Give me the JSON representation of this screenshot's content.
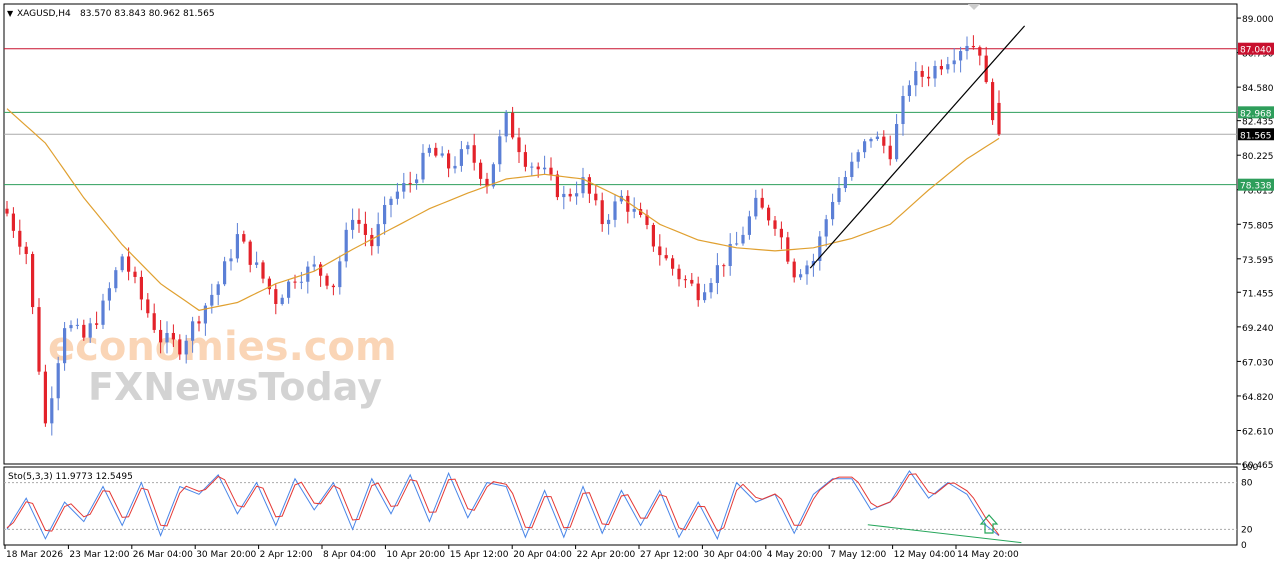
{
  "header": {
    "symbol": "XAGUSD,H4",
    "ohlc": "83.570 83.843 80.962 81.565",
    "dropdown_glyph": "▼"
  },
  "watermark": {
    "line1": "economies.com",
    "line2": "FXNewsToday"
  },
  "colors": {
    "bull": "#5B7FD6",
    "bear": "#E3222A",
    "ma": "#E0A030",
    "resistance": "#C8102E",
    "support": "#2E9E5B",
    "current": "#000000",
    "stoch_main": "#4A86E8",
    "stoch_signal": "#E53935",
    "divergence": "#26A65B",
    "arrow": "#26A65B"
  },
  "chart_data": [
    {
      "type": "candlestick",
      "ylim": [
        60.465,
        89.9
      ],
      "y_ticks": [
        "89.000",
        "86.790",
        "84.580",
        "82.435",
        "80.225",
        "78.015",
        "75.805",
        "73.595",
        "71.455",
        "69.240",
        "67.030",
        "64.820",
        "62.610",
        "60.465"
      ],
      "x_ticks": [
        "18 Mar 2026",
        "23 Mar 12:00",
        "26 Mar 04:00",
        "30 Mar 20:00",
        "2 Apr 12:00",
        "8 Apr 04:00",
        "10 Apr 20:00",
        "15 Apr 12:00",
        "20 Apr 04:00",
        "22 Apr 20:00",
        "27 Apr 12:00",
        "30 Apr 04:00",
        "4 May 20:00",
        "7 May 12:00",
        "12 May 04:00",
        "14 May 20:00"
      ],
      "close_path": [
        [
          0,
          76.5
        ],
        [
          3,
          74.0
        ],
        [
          6,
          63.0
        ],
        [
          9,
          69.5
        ],
        [
          12,
          68.5
        ],
        [
          15,
          70.5
        ],
        [
          18,
          73.8
        ],
        [
          21,
          71.0
        ],
        [
          24,
          68.5
        ],
        [
          27,
          68.0
        ],
        [
          30,
          70.0
        ],
        [
          33,
          72.0
        ],
        [
          36,
          75.0
        ],
        [
          39,
          73.0
        ],
        [
          42,
          71.0
        ],
        [
          45,
          72.5
        ],
        [
          48,
          73.0
        ],
        [
          51,
          72.0
        ],
        [
          54,
          76.5
        ],
        [
          57,
          74.5
        ],
        [
          60,
          77.5
        ],
        [
          63,
          78.5
        ],
        [
          66,
          80.5
        ],
        [
          69,
          79.5
        ],
        [
          72,
          80.5
        ],
        [
          75,
          78.5
        ],
        [
          78,
          82.5
        ],
        [
          81,
          80.0
        ],
        [
          84,
          79.0
        ],
        [
          87,
          77.5
        ],
        [
          90,
          78.5
        ],
        [
          93,
          76.0
        ],
        [
          96,
          77.5
        ],
        [
          99,
          76.0
        ],
        [
          102,
          74.0
        ],
        [
          105,
          72.5
        ],
        [
          108,
          71.5
        ],
        [
          111,
          73.0
        ],
        [
          114,
          74.5
        ],
        [
          117,
          77.0
        ],
        [
          120,
          76.0
        ],
        [
          123,
          72.8
        ],
        [
          126,
          73.5
        ],
        [
          129,
          77.5
        ],
        [
          132,
          79.5
        ],
        [
          135,
          81.5
        ],
        [
          138,
          80.5
        ],
        [
          141,
          85.0
        ],
        [
          144,
          85.5
        ],
        [
          147,
          86.5
        ],
        [
          150,
          87.5
        ],
        [
          152,
          87.0
        ],
        [
          153,
          84.5
        ],
        [
          154,
          83.0
        ],
        [
          155,
          81.565
        ]
      ],
      "last_close": 81.565,
      "ma_path": [
        [
          0,
          83.2
        ],
        [
          6,
          81.0
        ],
        [
          12,
          77.5
        ],
        [
          18,
          74.5
        ],
        [
          24,
          72.0
        ],
        [
          30,
          70.3
        ],
        [
          36,
          70.8
        ],
        [
          42,
          72.0
        ],
        [
          48,
          72.8
        ],
        [
          54,
          74.2
        ],
        [
          60,
          75.5
        ],
        [
          66,
          76.8
        ],
        [
          72,
          77.8
        ],
        [
          78,
          78.7
        ],
        [
          84,
          79.0
        ],
        [
          90,
          78.7
        ],
        [
          96,
          77.5
        ],
        [
          102,
          75.8
        ],
        [
          108,
          74.8
        ],
        [
          114,
          74.3
        ],
        [
          120,
          74.1
        ],
        [
          126,
          74.3
        ],
        [
          132,
          74.9
        ],
        [
          138,
          75.8
        ],
        [
          144,
          78.0
        ],
        [
          150,
          80.0
        ],
        [
          155,
          81.3
        ]
      ],
      "levels": [
        {
          "name": "resistance",
          "label": "87.040",
          "value": 87.04
        },
        {
          "name": "support-upper",
          "label": "82.968",
          "value": 82.968
        },
        {
          "name": "current-price",
          "label": "81.565",
          "value": 81.565
        },
        {
          "name": "support-lower",
          "label": "78.338",
          "value": 78.338
        }
      ],
      "trendline": [
        [
          125.5,
          73.0
        ],
        [
          159,
          88.5
        ]
      ]
    },
    {
      "type": "line",
      "label": "Sto(5,3,3) 11.9773 12.5495",
      "main": 11.9773,
      "signal": 12.5495,
      "ylim": [
        0,
        100
      ],
      "y_ticks": [
        "100",
        "80",
        "20",
        "0"
      ],
      "levels": [
        80,
        20
      ],
      "anchors": [
        [
          0,
          20
        ],
        [
          3,
          60
        ],
        [
          6,
          8
        ],
        [
          9,
          55
        ],
        [
          12,
          30
        ],
        [
          15,
          75
        ],
        [
          18,
          25
        ],
        [
          21,
          80
        ],
        [
          24,
          12
        ],
        [
          27,
          75
        ],
        [
          30,
          65
        ],
        [
          33,
          90
        ],
        [
          36,
          40
        ],
        [
          39,
          80
        ],
        [
          42,
          25
        ],
        [
          45,
          85
        ],
        [
          48,
          45
        ],
        [
          51,
          80
        ],
        [
          54,
          20
        ],
        [
          57,
          85
        ],
        [
          60,
          40
        ],
        [
          63,
          90
        ],
        [
          66,
          30
        ],
        [
          69,
          92
        ],
        [
          72,
          35
        ],
        [
          75,
          80
        ],
        [
          78,
          75
        ],
        [
          81,
          10
        ],
        [
          84,
          70
        ],
        [
          87,
          10
        ],
        [
          90,
          75
        ],
        [
          93,
          15
        ],
        [
          96,
          70
        ],
        [
          99,
          25
        ],
        [
          102,
          70
        ],
        [
          105,
          10
        ],
        [
          108,
          55
        ],
        [
          111,
          8
        ],
        [
          114,
          80
        ],
        [
          117,
          55
        ],
        [
          120,
          65
        ],
        [
          123,
          15
        ],
        [
          126,
          65
        ],
        [
          129,
          85
        ],
        [
          132,
          85
        ],
        [
          135,
          45
        ],
        [
          138,
          55
        ],
        [
          141,
          95
        ],
        [
          144,
          60
        ],
        [
          147,
          80
        ],
        [
          150,
          65
        ],
        [
          153,
          25
        ],
        [
          155,
          12
        ]
      ],
      "divergence": [
        [
          134.5,
          26
        ],
        [
          158.5,
          3
        ]
      ],
      "arrow": "up"
    }
  ]
}
